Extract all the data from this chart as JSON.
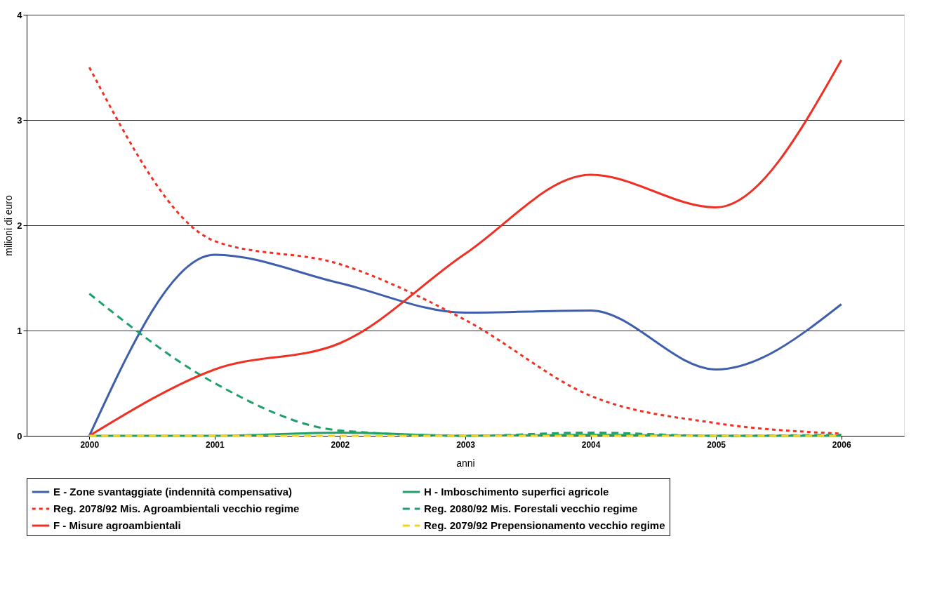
{
  "chart_data": {
    "type": "line",
    "xlabel": "anni",
    "ylabel": "milioni di euro",
    "categories": [
      "2000",
      "2001",
      "2002",
      "2003",
      "2004",
      "2005",
      "2006"
    ],
    "ylim": [
      0,
      4
    ],
    "yticks": [
      0,
      1,
      2,
      3,
      4
    ],
    "grid": "y",
    "legend": "bottom",
    "marker": "none",
    "series": [
      {
        "name": "E - Zone svantaggiate (indennità compensativa)",
        "color": "#3f5fad",
        "line_style": "solid",
        "values": [
          0,
          1.72,
          1.45,
          1.17,
          1.19,
          0.63,
          1.25
        ]
      },
      {
        "name": "H - Imboschimento superfici agricole",
        "color": "#1fa06a",
        "line_style": "solid",
        "values": [
          0,
          0,
          0.03,
          0,
          0.01,
          0,
          0
        ]
      },
      {
        "name": "Reg. 2078/92 Mis. Agroambientali vecchio regime",
        "color": "#ee3124",
        "line_style": "dotted",
        "values": [
          3.5,
          1.85,
          1.63,
          1.1,
          0.38,
          0.12,
          0.02
        ]
      },
      {
        "name": "Reg. 2080/92 Mis. Forestali vecchio regime",
        "color": "#1fa06a",
        "line_style": "dashed",
        "values": [
          1.35,
          0.5,
          0.05,
          0,
          0.03,
          0,
          0.01
        ]
      },
      {
        "name": "F - Misure agroambientali",
        "color": "#ee3124",
        "line_style": "solid",
        "values": [
          0,
          0.63,
          0.88,
          1.73,
          2.48,
          2.17,
          3.57
        ]
      },
      {
        "name": "Reg. 2079/92 Prepensionamento vecchio regime",
        "color": "#f5d21b",
        "line_style": "dashed",
        "values": [
          0,
          0,
          0,
          0,
          0,
          0,
          0
        ]
      }
    ]
  }
}
